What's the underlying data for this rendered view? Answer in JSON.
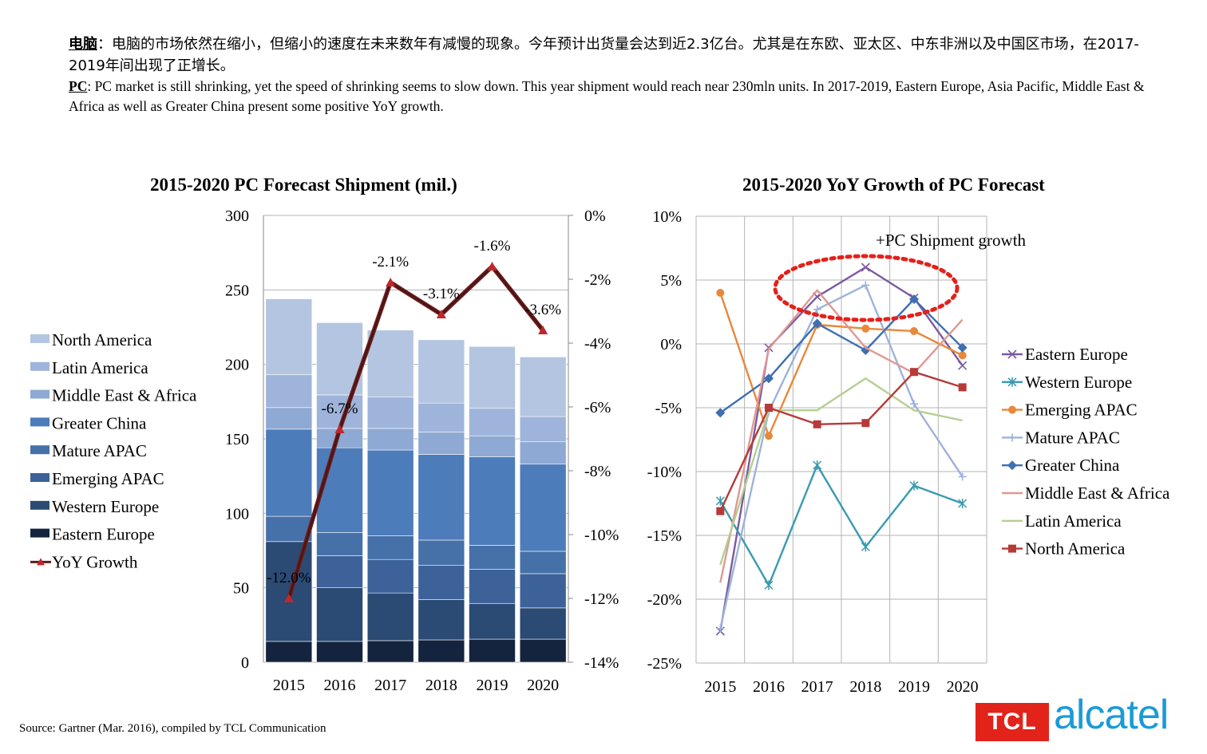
{
  "header": {
    "zh_bold": "电脑",
    "zh_text": "：电脑的市场依然在缩小，但缩小的速度在未来数年有减慢的现象。今年预计出货量会达到近2.3亿台。尤其是在东欧、亚太区、中东非洲以及中国区市场，在2017-2019年间出现了正增长。",
    "en_bold": "PC",
    "en_text": ": PC market is still shrinking, yet the speed of  shrinking seems to slow down. This year shipment would reach near 230mln units.  In 2017-2019, Eastern Europe, Asia Pacific, Middle East & Africa as well as Greater China present some positive YoY growth."
  },
  "source": "Source: Gartner (Mar. 2016), compiled by TCL Communication",
  "logo": {
    "tcl": "TCL",
    "alcatel": "alcatel",
    "tcl_color": "#e2231a",
    "alcatel_color": "#1b9bd7"
  },
  "chart_data": [
    {
      "type": "bar",
      "stacked": true,
      "title": "2015-2020 PC Forecast Shipment (mil.)",
      "categories": [
        "2015",
        "2016",
        "2017",
        "2018",
        "2019",
        "2020"
      ],
      "ylim": [
        0,
        300
      ],
      "yticks": [
        "0",
        "50",
        "100",
        "150",
        "200",
        "250",
        "300"
      ],
      "y2lim": [
        -14,
        0
      ],
      "y2ticks": [
        "-14%",
        "-12%",
        "-10%",
        "-8%",
        "-6%",
        "-4%",
        "-2%",
        "0%"
      ],
      "grid": true,
      "legend": "left",
      "series": [
        {
          "name": "Eastern Europe",
          "color": "#14243e",
          "values": [
            14,
            14,
            14.5,
            15,
            15.5,
            15.5
          ]
        },
        {
          "name": "Western Europe",
          "color": "#2b4a74",
          "values": [
            67,
            36,
            32,
            27,
            24,
            21
          ]
        },
        {
          "name": "Emerging APAC",
          "color": "#3c6299",
          "values": [
            0,
            21.5,
            22.5,
            23,
            23,
            23
          ]
        },
        {
          "name": "Mature APAC",
          "color": "#4670a8",
          "values": [
            17,
            15.5,
            16,
            17,
            16,
            15
          ]
        },
        {
          "name": "Greater China",
          "color": "#4d7cbb",
          "values": [
            58.5,
            57,
            57.5,
            57.5,
            59.5,
            58.5
          ]
        },
        {
          "name": "Middle East & Africa",
          "color": "#8ea9d3",
          "values": [
            14.5,
            13,
            14.5,
            15,
            14,
            15
          ]
        },
        {
          "name": "Latin America",
          "color": "#9fb4da",
          "values": [
            22,
            22.5,
            21,
            19.5,
            18.5,
            17
          ]
        },
        {
          "name": "North America",
          "color": "#b4c5e1",
          "values": [
            51,
            48.5,
            45,
            42.5,
            41.5,
            40
          ]
        }
      ],
      "line": {
        "name": "YoY Growth",
        "axis": "right",
        "color": "#5c1e1e",
        "marker_color": "#c0272d",
        "values": [
          -12.0,
          -6.7,
          -2.1,
          -3.1,
          -1.6,
          -3.6
        ],
        "labels": [
          "-12.0%",
          "-6.7%",
          "-2.1%",
          "-3.1%",
          "-1.6%",
          "-3.6%"
        ]
      }
    },
    {
      "type": "line",
      "title": "2015-2020 YoY Growth of  PC Forecast",
      "x": [
        "2015",
        "2016",
        "2017",
        "2018",
        "2019",
        "2020"
      ],
      "ylim": [
        -25,
        10
      ],
      "yticks": [
        "-25%",
        "-20%",
        "-15%",
        "-10%",
        "-5%",
        "0%",
        "5%",
        "10%"
      ],
      "grid": true,
      "legend": "right",
      "annotation": "+PC Shipment growth",
      "annotation_color": "#e3211b",
      "series": [
        {
          "name": "Eastern Europe",
          "color": "#7b5aa0",
          "marker": "x",
          "values": [
            -22.5,
            -0.3,
            3.7,
            6.0,
            3.6,
            -1.7
          ]
        },
        {
          "name": "Western Europe",
          "color": "#3a9ab0",
          "marker": "star",
          "values": [
            -12.3,
            -18.9,
            -9.5,
            -15.9,
            -11.1,
            -12.5
          ]
        },
        {
          "name": "Emerging APAC",
          "color": "#e8883a",
          "marker": "circle",
          "values": [
            4.0,
            -7.2,
            1.5,
            1.2,
            1.0,
            -0.9
          ]
        },
        {
          "name": "Mature APAC",
          "color": "#9cb3da",
          "marker": "plus",
          "values": [
            -22.3,
            -5.3,
            2.7,
            4.6,
            -4.7,
            -10.4
          ]
        },
        {
          "name": "Greater China",
          "color": "#3e6fb3",
          "marker": "diamond",
          "values": [
            -5.4,
            -2.7,
            1.6,
            -0.5,
            3.5,
            -0.3
          ]
        },
        {
          "name": "Middle East & Africa",
          "color": "#e09893",
          "marker": "none",
          "values": [
            -18.7,
            -0.4,
            4.2,
            -0.3,
            -2.3,
            1.9
          ]
        },
        {
          "name": "Latin America",
          "color": "#b5cf90",
          "marker": "none",
          "values": [
            -17.3,
            -5.2,
            -5.2,
            -2.7,
            -5.2,
            -6.0
          ]
        },
        {
          "name": "North America",
          "color": "#b63a38",
          "marker": "square",
          "values": [
            -13.1,
            -5.0,
            -6.3,
            -6.2,
            -2.2,
            -3.4
          ]
        }
      ]
    }
  ]
}
